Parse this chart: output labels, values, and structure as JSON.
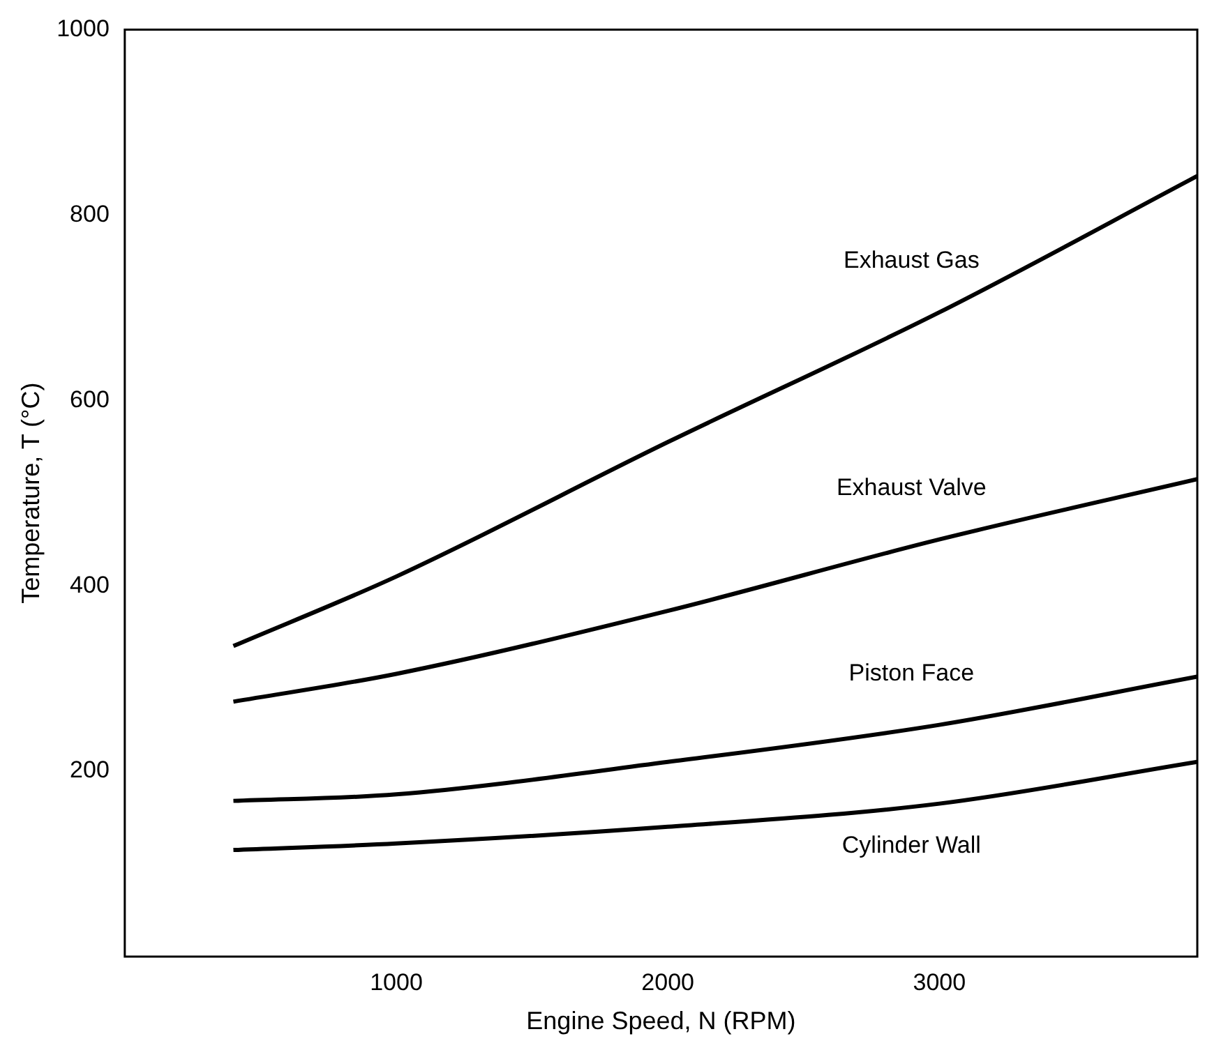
{
  "chart_data": {
    "type": "line",
    "xlabel": "Engine Speed, N (RPM)",
    "ylabel": "Temperature, T (°C)",
    "xlim": [
      0,
      3950
    ],
    "xticks": [
      1000,
      2000,
      3000
    ],
    "ylim": [
      0,
      1000
    ],
    "yticks": [
      200,
      400,
      600,
      800,
      1000
    ],
    "grid": false,
    "legend": false,
    "marker": "none",
    "line_style": "solid",
    "series": [
      {
        "name": "Exhaust Gas",
        "color": "#000000",
        "x": [
          400,
          1000,
          2000,
          3000,
          3950
        ],
        "values": [
          335,
          410,
          555,
          695,
          842
        ]
      },
      {
        "name": "Exhaust Valve",
        "color": "#000000",
        "x": [
          400,
          1000,
          2000,
          3000,
          3950
        ],
        "values": [
          275,
          305,
          373,
          450,
          515
        ]
      },
      {
        "name": "Piston Face",
        "color": "#000000",
        "x": [
          400,
          1000,
          2000,
          3000,
          3950
        ],
        "values": [
          168,
          175,
          210,
          250,
          302
        ]
      },
      {
        "name": "Cylinder Wall",
        "color": "#000000",
        "x": [
          400,
          1000,
          2000,
          3000,
          3950
        ],
        "values": [
          115,
          122,
          140,
          165,
          210
        ]
      }
    ]
  }
}
